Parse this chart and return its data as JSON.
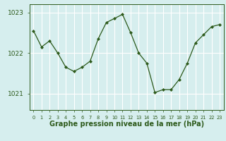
{
  "x": [
    0,
    1,
    2,
    3,
    4,
    5,
    6,
    7,
    8,
    9,
    10,
    11,
    12,
    13,
    14,
    15,
    16,
    17,
    18,
    19,
    20,
    21,
    22,
    23
  ],
  "y": [
    1022.55,
    1022.15,
    1022.3,
    1022.0,
    1021.65,
    1021.55,
    1021.65,
    1021.8,
    1022.35,
    1022.75,
    1022.85,
    1022.95,
    1022.5,
    1022.0,
    1021.75,
    1021.03,
    1021.1,
    1021.1,
    1021.35,
    1021.75,
    1022.25,
    1022.45,
    1022.65,
    1022.7
  ],
  "line_color": "#2d5a1b",
  "marker": "D",
  "marker_size": 2,
  "bg_color": "#d6eeee",
  "grid_color": "#ffffff",
  "xlabel": "Graphe pression niveau de la mer (hPa)",
  "xlabel_color": "#2d5a1b",
  "tick_color": "#2d5a1b",
  "yticks": [
    1021,
    1022,
    1023
  ],
  "ylim": [
    1020.6,
    1023.2
  ],
  "xlim": [
    -0.5,
    23.5
  ],
  "xtick_labels": [
    "0",
    "1",
    "2",
    "3",
    "4",
    "5",
    "6",
    "7",
    "8",
    "9",
    "10",
    "11",
    "12",
    "13",
    "14",
    "15",
    "16",
    "17",
    "18",
    "19",
    "20",
    "21",
    "22",
    "23"
  ],
  "xlabel_fontsize": 7.0,
  "ytick_fontsize": 6.5,
  "xtick_fontsize": 4.8
}
